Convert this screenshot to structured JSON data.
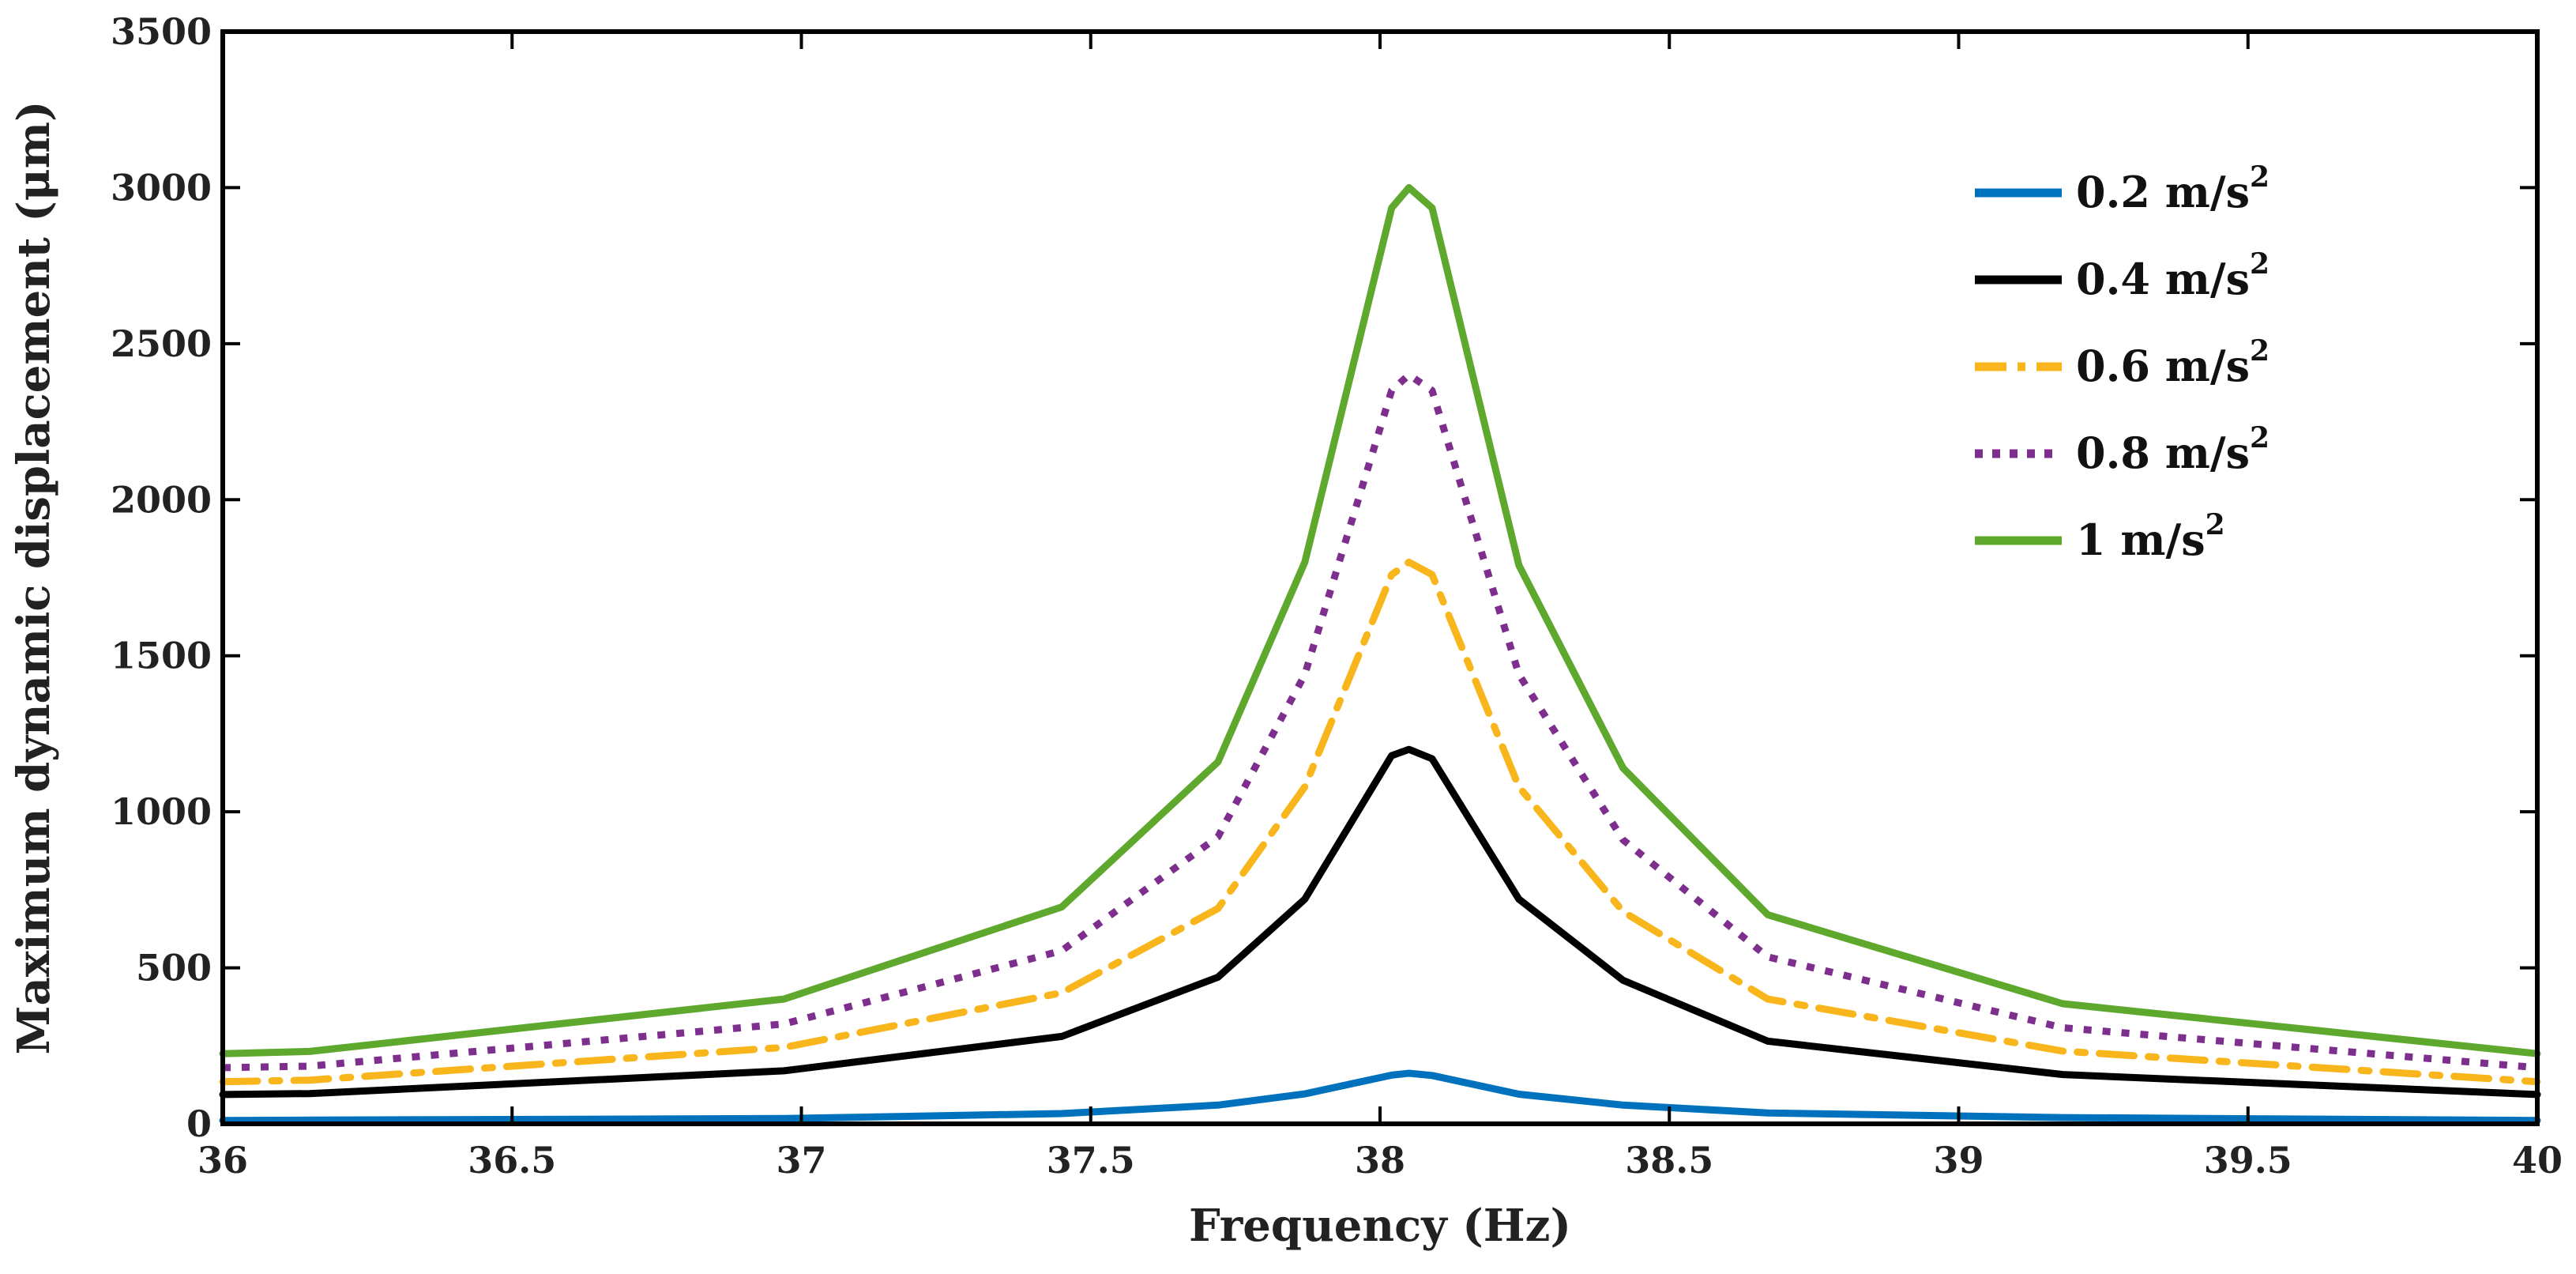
{
  "chart_data": {
    "type": "line",
    "title": "",
    "xlabel": "Frequency (Hz)",
    "ylabel": "Maximum dynamic displacement (μm)",
    "xlim": [
      36,
      40
    ],
    "ylim": [
      0,
      3500
    ],
    "xticks": [
      "36",
      "36.5",
      "37",
      "37.5",
      "38",
      "38.5",
      "39",
      "39.5",
      "40"
    ],
    "xtick_values": [
      36,
      36.5,
      37,
      37.5,
      38,
      38.5,
      39,
      39.5,
      40
    ],
    "yticks": [
      "0",
      "500",
      "1000",
      "1500",
      "2000",
      "2500",
      "3000",
      "3500"
    ],
    "ytick_values": [
      0,
      500,
      1000,
      1500,
      2000,
      2500,
      3000,
      3500
    ],
    "grid": false,
    "legend_position": "top-right",
    "x": [
      36,
      36.15,
      36.97,
      37.45,
      37.72,
      37.87,
      38.02,
      38.05,
      38.09,
      38.24,
      38.42,
      38.67,
      39.18,
      40
    ],
    "series": [
      {
        "name": "0.2 m/s",
        "superscript": "2",
        "color": "#0072BD",
        "dash": "solid",
        "values": [
          11,
          12,
          17,
          33,
          60,
          96,
          156,
          162,
          155,
          95,
          60,
          35,
          20,
          11
        ]
      },
      {
        "name": "0.4 m/s",
        "superscript": "2",
        "color": "#000000",
        "dash": "solid",
        "values": [
          94,
          97,
          170,
          280,
          470,
          720,
          1180,
          1200,
          1170,
          720,
          460,
          265,
          158,
          94
        ]
      },
      {
        "name": "0.6 m/s",
        "superscript": "2",
        "color": "#F9B51C",
        "dash": "dashdot",
        "values": [
          135,
          140,
          245,
          420,
          690,
          1080,
          1760,
          1800,
          1760,
          1080,
          680,
          400,
          233,
          135
        ]
      },
      {
        "name": "0.8 m/s",
        "superscript": "2",
        "color": "#7E2F8E",
        "dash": "dotted",
        "values": [
          180,
          185,
          320,
          555,
          920,
          1440,
          2350,
          2400,
          2350,
          1440,
          910,
          535,
          308,
          180
        ]
      },
      {
        "name": "1 m/s",
        "superscript": "2",
        "color": "#5EA82E",
        "dash": "solid",
        "values": [
          225,
          232,
          400,
          695,
          1160,
          1800,
          2935,
          3000,
          2935,
          1790,
          1140,
          670,
          385,
          225
        ]
      }
    ]
  }
}
